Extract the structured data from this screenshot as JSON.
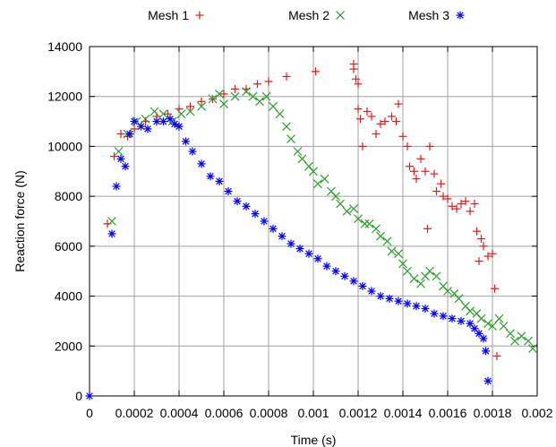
{
  "chart_data": {
    "type": "scatter",
    "xlabel": "Time (s)",
    "ylabel": "Reaction force (N)",
    "xlim": [
      0,
      0.002
    ],
    "ylim": [
      0,
      14000
    ],
    "x_ticks": [
      0,
      0.0002,
      0.0004,
      0.0006,
      0.0008,
      0.001,
      0.0012,
      0.0014,
      0.0016,
      0.0018,
      0.002
    ],
    "x_tick_labels": [
      "0",
      "0.0002",
      "0.0004",
      "0.0006",
      "0.0008",
      "0.001",
      "0.0012",
      "0.0014",
      "0.0016",
      "0.0018",
      "0.002"
    ],
    "y_ticks": [
      0,
      2000,
      4000,
      6000,
      8000,
      10000,
      12000,
      14000
    ],
    "y_tick_labels": [
      "0",
      "2000",
      "4000",
      "6000",
      "8000",
      "10000",
      "12000",
      "14000"
    ],
    "grid": true,
    "legend_position": "top",
    "series": [
      {
        "name": "Mesh 1",
        "marker": "plus",
        "color": "#e41a1c",
        "points": [
          [
            8e-05,
            6900
          ],
          [
            0.00011,
            9600
          ],
          [
            0.00014,
            10500
          ],
          [
            0.00017,
            10400
          ],
          [
            0.0002,
            10700
          ],
          [
            0.00025,
            11000
          ],
          [
            0.0003,
            11200
          ],
          [
            0.00035,
            11300
          ],
          [
            0.0004,
            11500
          ],
          [
            0.00045,
            11600
          ],
          [
            0.0005,
            11800
          ],
          [
            0.00055,
            11900
          ],
          [
            0.0006,
            12100
          ],
          [
            0.00065,
            12300
          ],
          [
            0.0007,
            12300
          ],
          [
            0.00075,
            12500
          ],
          [
            0.0008,
            12600
          ],
          [
            0.00088,
            12800
          ],
          [
            0.00101,
            13000
          ],
          [
            0.00118,
            13300
          ],
          [
            0.00118,
            13100
          ],
          [
            0.00119,
            12700
          ],
          [
            0.0012,
            12500
          ],
          [
            0.0012,
            11500
          ],
          [
            0.00121,
            11100
          ],
          [
            0.00122,
            10000
          ],
          [
            0.00124,
            11400
          ],
          [
            0.00126,
            11200
          ],
          [
            0.00128,
            10500
          ],
          [
            0.0013,
            10900
          ],
          [
            0.00132,
            11000
          ],
          [
            0.00135,
            11200
          ],
          [
            0.00137,
            11000
          ],
          [
            0.00138,
            11700
          ],
          [
            0.0014,
            10400
          ],
          [
            0.00142,
            10000
          ],
          [
            0.00143,
            9200
          ],
          [
            0.00145,
            9000
          ],
          [
            0.00146,
            8700
          ],
          [
            0.00148,
            9500
          ],
          [
            0.0015,
            9000
          ],
          [
            0.00151,
            6700
          ],
          [
            0.00152,
            10000
          ],
          [
            0.00154,
            8900
          ],
          [
            0.00155,
            8200
          ],
          [
            0.00157,
            8500
          ],
          [
            0.00158,
            8000
          ],
          [
            0.0016,
            7900
          ],
          [
            0.00162,
            7600
          ],
          [
            0.00164,
            7500
          ],
          [
            0.00166,
            7700
          ],
          [
            0.00168,
            7800
          ],
          [
            0.0017,
            7400
          ],
          [
            0.00172,
            7700
          ],
          [
            0.00173,
            6600
          ],
          [
            0.00175,
            6300
          ],
          [
            0.00176,
            6000
          ],
          [
            0.00178,
            5600
          ],
          [
            0.0018,
            5700
          ],
          [
            0.00181,
            4300
          ],
          [
            0.00182,
            1600
          ],
          [
            0.00174,
            5400
          ]
        ]
      },
      {
        "name": "Mesh 2",
        "marker": "cross",
        "color": "#2ca02c",
        "points": [
          [
            0.0001,
            7000
          ],
          [
            0.00013,
            9800
          ],
          [
            0.00017,
            10500
          ],
          [
            0.00021,
            11000
          ],
          [
            0.00025,
            11100
          ],
          [
            0.00029,
            11400
          ],
          [
            0.00033,
            11300
          ],
          [
            0.00037,
            11000
          ],
          [
            0.00041,
            11300
          ],
          [
            0.00045,
            11400
          ],
          [
            0.0005,
            11600
          ],
          [
            0.00055,
            11900
          ],
          [
            0.00058,
            12100
          ],
          [
            0.0006,
            11700
          ],
          [
            0.00065,
            12000
          ],
          [
            0.0007,
            12200
          ],
          [
            0.00073,
            12000
          ],
          [
            0.00076,
            11800
          ],
          [
            0.00079,
            12000
          ],
          [
            0.00082,
            11600
          ],
          [
            0.00085,
            11300
          ],
          [
            0.00088,
            10800
          ],
          [
            0.0009,
            10300
          ],
          [
            0.00093,
            9800
          ],
          [
            0.00095,
            9500
          ],
          [
            0.00098,
            9200
          ],
          [
            0.001,
            9000
          ],
          [
            0.00102,
            8500
          ],
          [
            0.00105,
            8700
          ],
          [
            0.00108,
            8200
          ],
          [
            0.0011,
            8000
          ],
          [
            0.00112,
            7700
          ],
          [
            0.00115,
            7400
          ],
          [
            0.00118,
            7500
          ],
          [
            0.0012,
            7100
          ],
          [
            0.00123,
            6900
          ],
          [
            0.00125,
            6900
          ],
          [
            0.00128,
            6700
          ],
          [
            0.0013,
            6400
          ],
          [
            0.00133,
            6200
          ],
          [
            0.00135,
            5800
          ],
          [
            0.00138,
            5700
          ],
          [
            0.0014,
            5300
          ],
          [
            0.00142,
            5000
          ],
          [
            0.00145,
            4700
          ],
          [
            0.00148,
            4500
          ],
          [
            0.0015,
            4800
          ],
          [
            0.00152,
            5000
          ],
          [
            0.00155,
            4800
          ],
          [
            0.00158,
            4400
          ],
          [
            0.0016,
            4200
          ],
          [
            0.00163,
            4100
          ],
          [
            0.00165,
            3900
          ],
          [
            0.00168,
            3600
          ],
          [
            0.0017,
            3400
          ],
          [
            0.00173,
            3300
          ],
          [
            0.00175,
            3100
          ],
          [
            0.00178,
            2900
          ],
          [
            0.0018,
            2800
          ],
          [
            0.00183,
            3100
          ],
          [
            0.00185,
            2800
          ],
          [
            0.00188,
            2500
          ],
          [
            0.0019,
            2200
          ],
          [
            0.00193,
            2400
          ],
          [
            0.00196,
            2200
          ],
          [
            0.00198,
            1900
          ]
        ]
      },
      {
        "name": "Mesh 3",
        "marker": "star",
        "color": "#0000ff",
        "points": [
          [
            0,
            0
          ],
          [
            0.0001,
            6500
          ],
          [
            0.00012,
            8400
          ],
          [
            0.00014,
            9500
          ],
          [
            0.00016,
            9200
          ],
          [
            0.00018,
            10500
          ],
          [
            0.0002,
            11000
          ],
          [
            0.00023,
            10800
          ],
          [
            0.00026,
            10700
          ],
          [
            0.0003,
            11000
          ],
          [
            0.00033,
            11000
          ],
          [
            0.00036,
            11100
          ],
          [
            0.00038,
            10900
          ],
          [
            0.0004,
            10800
          ],
          [
            0.00043,
            10200
          ],
          [
            0.00046,
            9800
          ],
          [
            0.0005,
            9300
          ],
          [
            0.00054,
            8800
          ],
          [
            0.00058,
            8600
          ],
          [
            0.00062,
            8200
          ],
          [
            0.00066,
            7800
          ],
          [
            0.0007,
            7600
          ],
          [
            0.00074,
            7300
          ],
          [
            0.00078,
            7000
          ],
          [
            0.00082,
            6700
          ],
          [
            0.00086,
            6400
          ],
          [
            0.0009,
            6100
          ],
          [
            0.00094,
            5900
          ],
          [
            0.00098,
            5700
          ],
          [
            0.00102,
            5500
          ],
          [
            0.00106,
            5200
          ],
          [
            0.0011,
            5000
          ],
          [
            0.00114,
            4800
          ],
          [
            0.00118,
            4600
          ],
          [
            0.00122,
            4400
          ],
          [
            0.00126,
            4200
          ],
          [
            0.0013,
            4000
          ],
          [
            0.00134,
            3900
          ],
          [
            0.00138,
            3800
          ],
          [
            0.00142,
            3700
          ],
          [
            0.00146,
            3600
          ],
          [
            0.0015,
            3500
          ],
          [
            0.00154,
            3300
          ],
          [
            0.00158,
            3200
          ],
          [
            0.00162,
            3100
          ],
          [
            0.00166,
            3000
          ],
          [
            0.0017,
            2900
          ],
          [
            0.00172,
            2700
          ],
          [
            0.00174,
            2500
          ],
          [
            0.00176,
            2300
          ],
          [
            0.00177,
            1800
          ],
          [
            0.00178,
            600
          ]
        ]
      }
    ]
  }
}
